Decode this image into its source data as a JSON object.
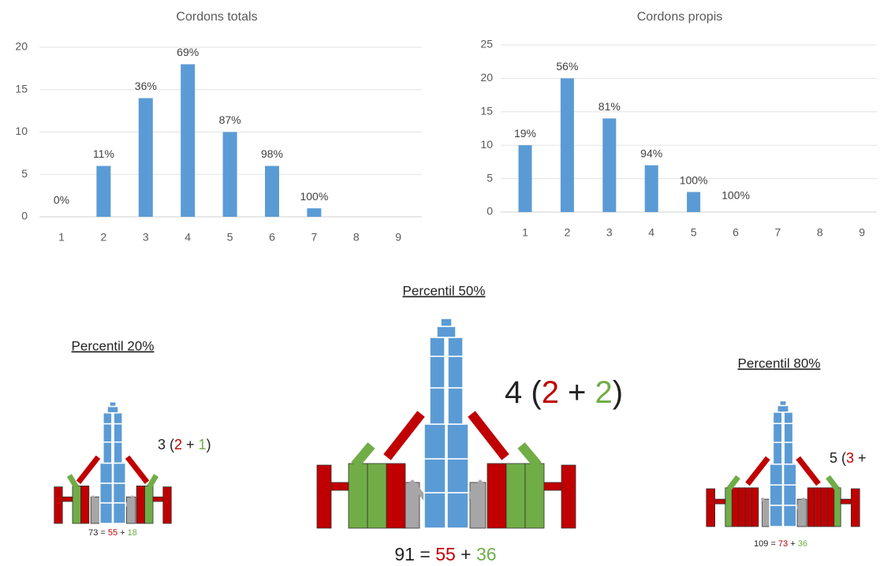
{
  "chart_data": [
    {
      "type": "bar",
      "title": "Cordons totals",
      "categories": [
        "1",
        "2",
        "3",
        "4",
        "5",
        "6",
        "7",
        "8",
        "9"
      ],
      "values": [
        0,
        6,
        14,
        18,
        10,
        6,
        1,
        0,
        0
      ],
      "bar_labels": [
        "0%",
        "11%",
        "36%",
        "69%",
        "87%",
        "98%",
        "100%",
        null,
        null
      ],
      "color": "#5b9bd5",
      "ylim": [
        0,
        20
      ],
      "yticks": [
        0,
        5,
        10,
        15,
        20
      ],
      "grid": true
    },
    {
      "type": "bar",
      "title": "Cordons propis",
      "categories": [
        "1",
        "2",
        "3",
        "4",
        "5",
        "6",
        "7",
        "8",
        "9"
      ],
      "values": [
        10,
        20,
        14,
        7,
        3,
        0,
        0,
        0,
        0
      ],
      "bar_labels": [
        "19%",
        "56%",
        "81%",
        "94%",
        "100%",
        "100%",
        null,
        null,
        null
      ],
      "color": "#5b9bd5",
      "ylim": [
        0,
        25
      ],
      "yticks": [
        0,
        5,
        10,
        15,
        20,
        25
      ],
      "grid": true
    }
  ],
  "diagrams": [
    {
      "title": "Percentil 20%",
      "formula": [
        {
          "text": "3 ("
        },
        {
          "text": "2",
          "color": "#c00000"
        },
        {
          "text": " + "
        },
        {
          "text": "1",
          "color": "#70ad47"
        },
        {
          "text": ")"
        }
      ],
      "sum": [
        {
          "text": "73 = "
        },
        {
          "text": "55",
          "color": "#c00000"
        },
        {
          "text": " + "
        },
        {
          "text": "18",
          "color": "#70ad47"
        }
      ]
    },
    {
      "title": "Percentil 50%",
      "formula": [
        {
          "text": "4 ("
        },
        {
          "text": "2",
          "color": "#c00000"
        },
        {
          "text": " + "
        },
        {
          "text": "2",
          "color": "#70ad47"
        },
        {
          "text": ")"
        }
      ],
      "sum": [
        {
          "text": "91 = "
        },
        {
          "text": "55",
          "color": "#c00000"
        },
        {
          "text": " + "
        },
        {
          "text": "36",
          "color": "#70ad47"
        }
      ]
    },
    {
      "title": "Percentil 80%",
      "formula": [
        {
          "text": "5 ("
        },
        {
          "text": "3",
          "color": "#c00000"
        },
        {
          "text": " +"
        }
      ],
      "sum": [
        {
          "text": "109 = "
        },
        {
          "text": "73",
          "color": "#c00000"
        },
        {
          "text": " + "
        },
        {
          "text": "36",
          "color": "#70ad47"
        }
      ]
    }
  ]
}
